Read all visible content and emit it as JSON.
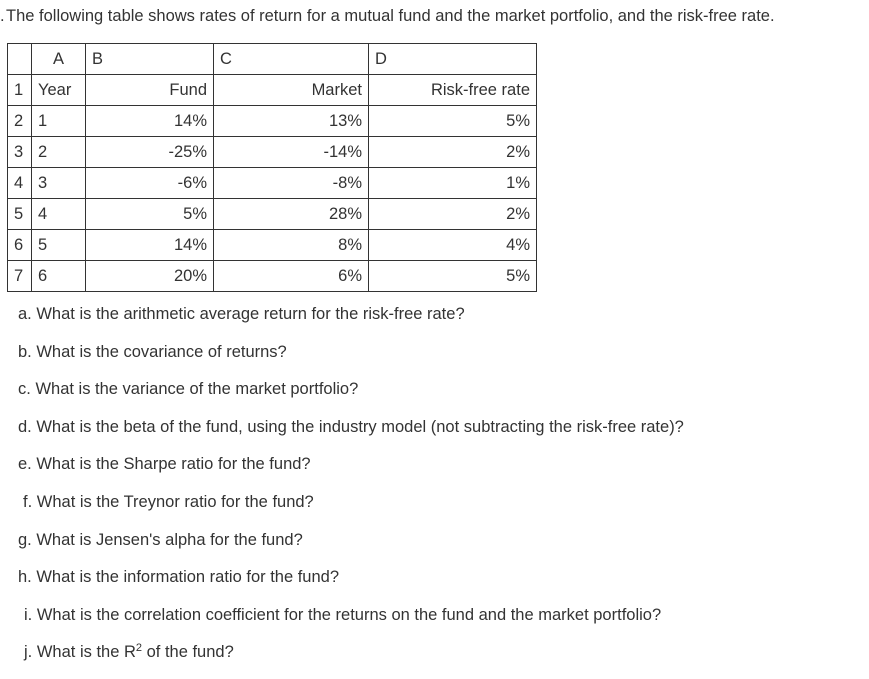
{
  "intro": {
    "text": "The following table shows rates of return for a mutual fund and the market portfolio, and the risk-free rate.",
    "dot": "."
  },
  "sheet": {
    "column_headers": [
      "A",
      "B",
      "C",
      "D"
    ],
    "row_numbers": [
      "1",
      "2",
      "3",
      "4",
      "5",
      "6",
      "7"
    ],
    "header_row": [
      "Year",
      "Fund",
      "Market",
      "Risk-free rate"
    ],
    "rows": [
      [
        "1",
        "14%",
        "13%",
        "5%"
      ],
      [
        "2",
        "-25%",
        "-14%",
        "2%"
      ],
      [
        "3",
        "-6%",
        "-8%",
        "1%"
      ],
      [
        "4",
        "5%",
        "28%",
        "2%"
      ],
      [
        "5",
        "14%",
        "8%",
        "4%"
      ],
      [
        "6",
        "20%",
        "6%",
        "5%"
      ]
    ]
  },
  "questions": [
    {
      "marker": "a.",
      "text": "What is the arithmetic average return for the risk-free rate?"
    },
    {
      "marker": "b.",
      "text": "What is the covariance of returns?"
    },
    {
      "marker": "c.",
      "text": "What is the variance of the market portfolio?"
    },
    {
      "marker": "d.",
      "text": "What is the beta of the fund, using the industry model (not subtracting the risk-free rate)?"
    },
    {
      "marker": "e.",
      "text": "What is the Sharpe ratio for the fund?"
    },
    {
      "marker": "f.",
      "text": "What is the Treynor ratio for the fund?"
    },
    {
      "marker": "g.",
      "text": "What is Jensen's alpha for the fund?"
    },
    {
      "marker": "h.",
      "text": "What is the information ratio for the fund?"
    },
    {
      "marker": "i.",
      "text": "What is the correlation coefficient for the returns on the fund and the market portfolio?"
    },
    {
      "marker": "j.",
      "text_before": "What is the R",
      "superscript": "2",
      "text_after": " of the fund?"
    }
  ]
}
